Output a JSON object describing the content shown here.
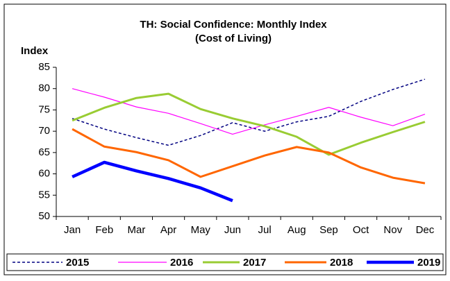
{
  "chart_data": {
    "type": "line",
    "title": [
      "TH: Social Confidence: Monthly Index",
      "(Cost of Living)"
    ],
    "y_label": "Index",
    "categories": [
      "Jan",
      "Feb",
      "Mar",
      "Apr",
      "May",
      "Jun",
      "Jul",
      "Aug",
      "Sep",
      "Oct",
      "Nov",
      "Dec"
    ],
    "series": [
      {
        "name": "2015",
        "color": "#000080",
        "line_style": "dashed",
        "values": [
          73,
          70.5,
          68.5,
          66.7,
          69,
          72,
          70,
          72.2,
          73.5,
          77,
          79.8,
          82.2
        ]
      },
      {
        "name": "2016",
        "color": "#ff00ff",
        "values": [
          80,
          78,
          75.7,
          74.2,
          71.8,
          69.3,
          71.5,
          73.5,
          75.6,
          73.3,
          71.3,
          74
        ]
      },
      {
        "name": "2017",
        "color": "#99cc33",
        "values": [
          72.5,
          75.5,
          77.8,
          78.8,
          75.2,
          73,
          71.2,
          68.7,
          64.5,
          67.3,
          69.8,
          72.2
        ]
      },
      {
        "name": "2018",
        "color": "#ff6600",
        "values": [
          70.5,
          66.4,
          65.1,
          63.2,
          59.3,
          61.8,
          64.3,
          66.3,
          65,
          61.5,
          59.1,
          57.8
        ]
      },
      {
        "name": "2019",
        "color": "#0000ff",
        "values": [
          59.3,
          62.7,
          60.7,
          58.9,
          56.7,
          53.7,
          null,
          null,
          null,
          null,
          null,
          null
        ]
      }
    ],
    "ylim": [
      50,
      85
    ],
    "yticks": [
      50,
      55,
      60,
      65,
      70,
      75,
      80,
      85
    ],
    "grid": false,
    "legend": "bottom"
  }
}
